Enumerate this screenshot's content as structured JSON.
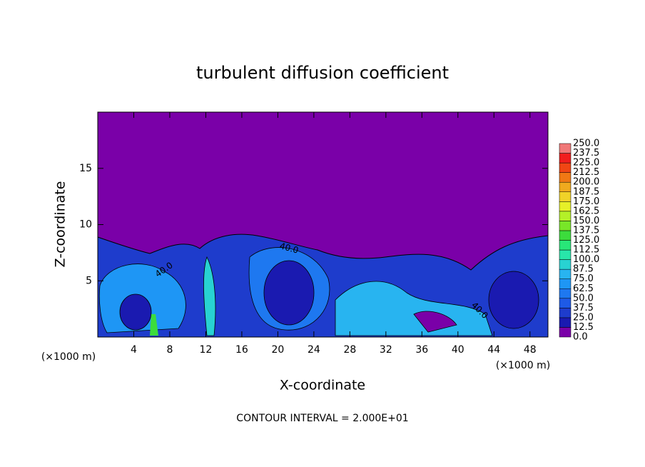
{
  "chart_data": {
    "type": "contour",
    "title": "turbulent diffusion coefficient",
    "x_label": "X-coordinate",
    "y_label": "Z-coordinate",
    "x_unit": "(×1000 m)",
    "footer": "CONTOUR INTERVAL = 2.000E+01",
    "xlim": [
      0,
      50
    ],
    "ylim": [
      0,
      20
    ],
    "xticks": [
      4,
      8,
      12,
      16,
      20,
      24,
      28,
      32,
      36,
      40,
      44,
      48
    ],
    "yticks": [
      5,
      10,
      15
    ],
    "contour_labels": [
      "40.0",
      "40.0",
      "40.0"
    ],
    "colorbar": {
      "levels": [
        {
          "value": 0,
          "label": "0.0"
        },
        {
          "value": 12.5,
          "label": "12.5"
        },
        {
          "value": 25,
          "label": "25.0"
        },
        {
          "value": 37.5,
          "label": "37.5"
        },
        {
          "value": 50,
          "label": "50.0"
        },
        {
          "value": 62.5,
          "label": "62.5"
        },
        {
          "value": 75,
          "label": "75.0"
        },
        {
          "value": 87.5,
          "label": "87.5"
        },
        {
          "value": 100,
          "label": "100.0"
        },
        {
          "value": 112.5,
          "label": "112.5"
        },
        {
          "value": 125,
          "label": "125.0"
        },
        {
          "value": 137.5,
          "label": "137.5"
        },
        {
          "value": 150,
          "label": "150.0"
        },
        {
          "value": 162.5,
          "label": "162.5"
        },
        {
          "value": 175,
          "label": "175.0"
        },
        {
          "value": 187.5,
          "label": "187.5"
        },
        {
          "value": 200,
          "label": "200.0"
        },
        {
          "value": 212.5,
          "label": "212.5"
        },
        {
          "value": 225,
          "label": "225.0"
        },
        {
          "value": 237.5,
          "label": "237.5"
        },
        {
          "value": 250,
          "label": "250.0"
        }
      ],
      "colors": [
        "#7a00a8",
        "#1a1ab0",
        "#1e3ccc",
        "#1e5ae6",
        "#1e78f0",
        "#1e96f5",
        "#28b4f0",
        "#28d2d2",
        "#28e6aa",
        "#28e678",
        "#3cdc3c",
        "#78e628",
        "#b4f028",
        "#e6f028",
        "#f0d228",
        "#f0aa1e",
        "#f07814",
        "#f04614",
        "#f01e1e",
        "#f07878"
      ]
    }
  }
}
